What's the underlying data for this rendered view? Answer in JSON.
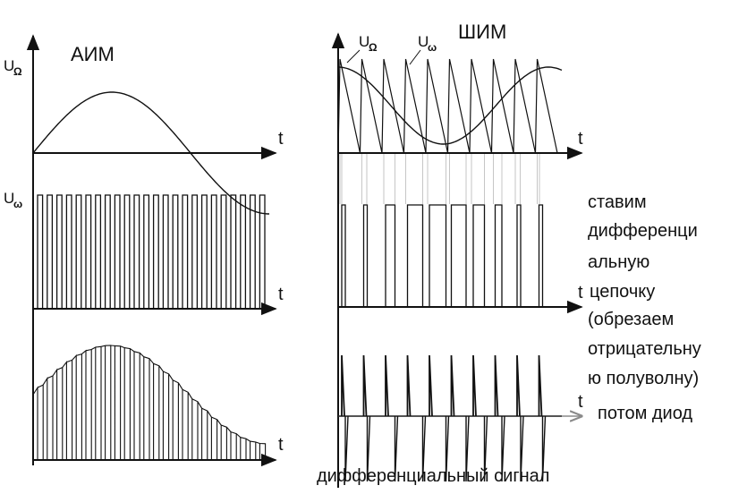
{
  "left_panel": {
    "title": "АИМ",
    "top_axis_label": "U",
    "top_axis_sub": "Ω",
    "mid_axis_label": "U",
    "mid_axis_sub": "ω",
    "time_label": "t"
  },
  "right_panel": {
    "title": "ШИМ",
    "signal_label": "U",
    "signal_sub": "Ω",
    "saw_label": "U",
    "saw_sub": "ω",
    "time_label": "t"
  },
  "notes": {
    "line1": "ставим",
    "line2": "дифференци",
    "line3": "альную",
    "line4": "цепочку",
    "line5": "(обрезаем",
    "line6": "отрицательну",
    "line7": "ю полуволну)",
    "diode": "потом диод",
    "bottom": "дифференциальный сигнал"
  },
  "colors": {
    "ink": "#111111",
    "guide": "#b8b8b8",
    "arrow_gray": "#8a8a8a"
  }
}
